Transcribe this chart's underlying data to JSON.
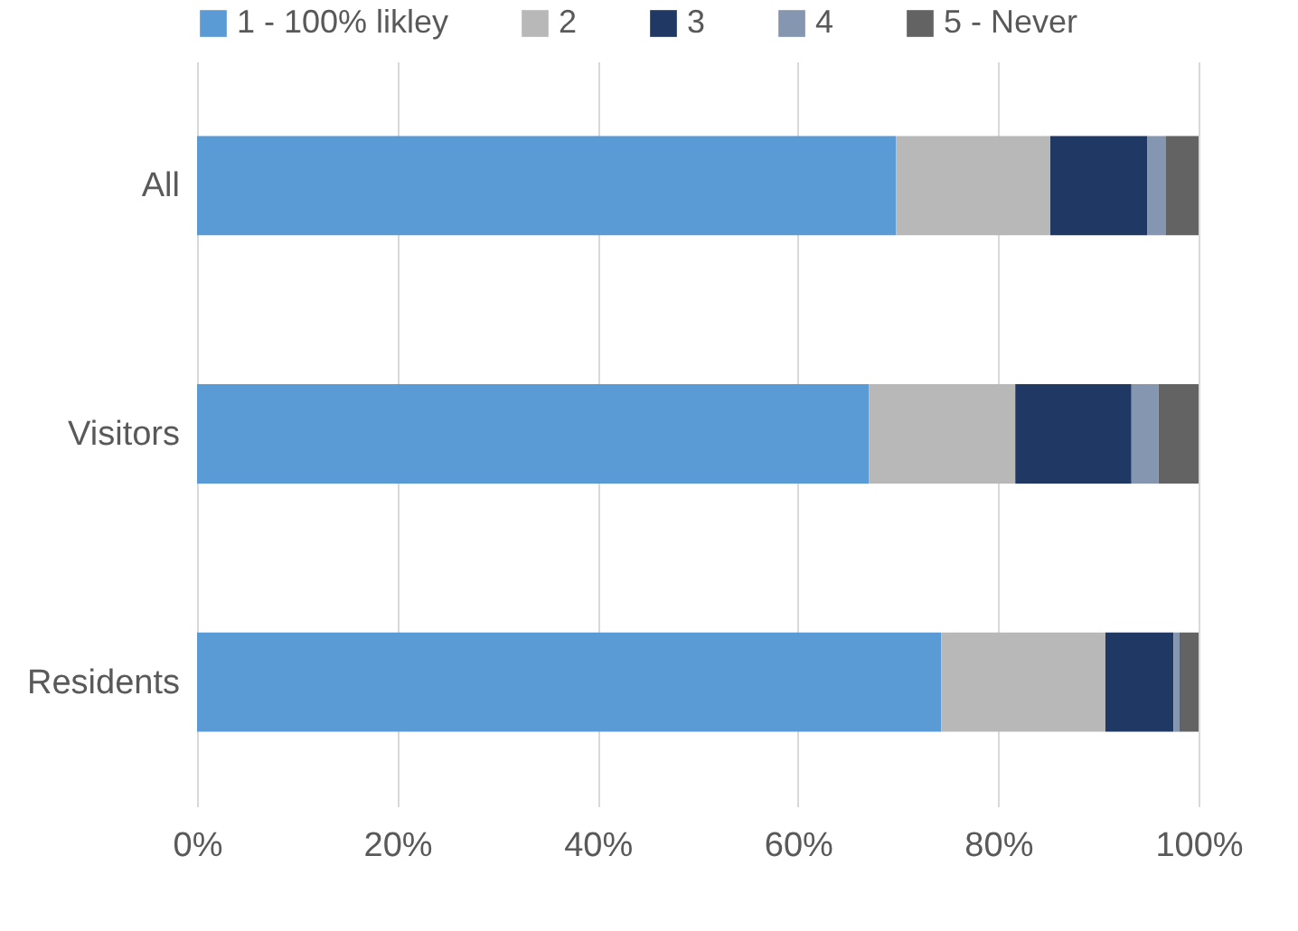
{
  "chart_data": {
    "type": "bar",
    "orientation": "horizontal",
    "stacked": true,
    "categories": [
      "All",
      "Visitors",
      "Residents"
    ],
    "series": [
      {
        "name": "1 - 100% likley",
        "color": "#5b9bd5",
        "values": [
          69.8,
          67.1,
          74.3
        ]
      },
      {
        "name": "2",
        "color": "#b8b8b8",
        "values": [
          15.4,
          14.6,
          16.4
        ]
      },
      {
        "name": "3",
        "color": "#1f3864",
        "values": [
          9.7,
          11.6,
          6.8
        ]
      },
      {
        "name": "4",
        "color": "#8596b0",
        "values": [
          1.8,
          2.7,
          0.6
        ]
      },
      {
        "name": "5 - Never",
        "color": "#636363",
        "values": [
          3.3,
          4.0,
          1.9
        ]
      }
    ],
    "xlim": [
      0,
      100
    ],
    "xticks": [
      {
        "value": 0,
        "label": "0%"
      },
      {
        "value": 20,
        "label": "20%"
      },
      {
        "value": 40,
        "label": "40%"
      },
      {
        "value": 60,
        "label": "60%"
      },
      {
        "value": 80,
        "label": "80%"
      },
      {
        "value": 100,
        "label": "100%"
      }
    ],
    "grid": "x",
    "legend": "top"
  }
}
